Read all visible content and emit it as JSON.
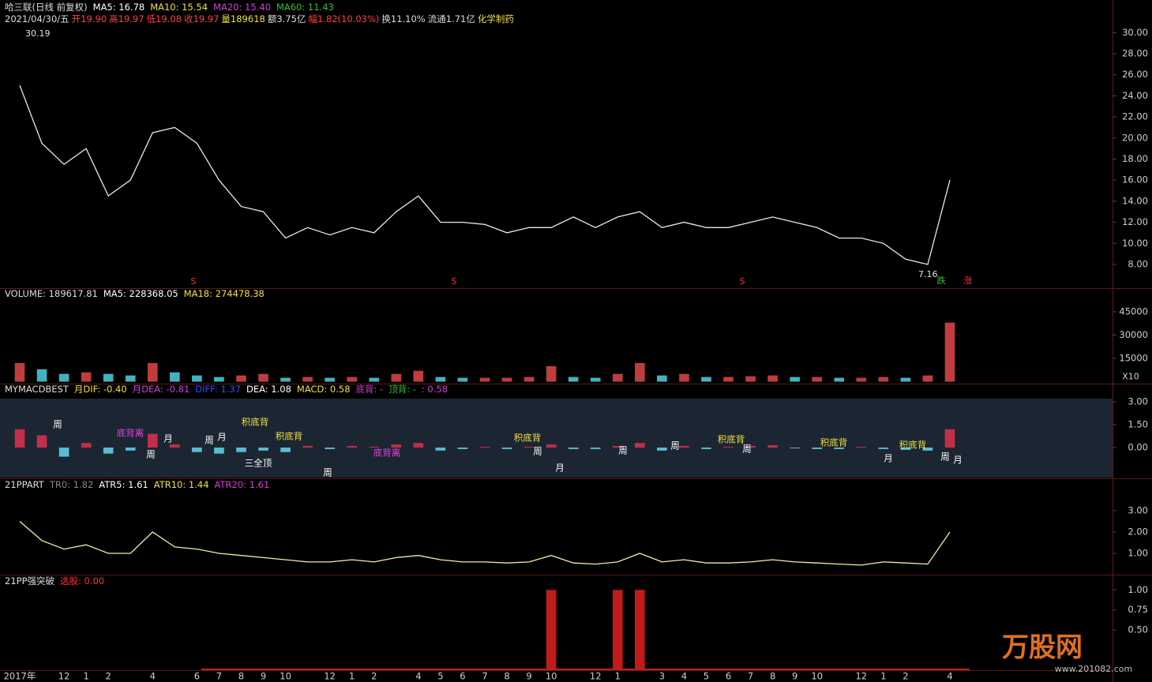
{
  "chart_data": [
    {
      "type": "line",
      "title": "哈三联(日线 前复权)",
      "indicators": [
        {
          "text": "MA5: 16.78",
          "color": "#ffffff"
        },
        {
          "text": "MA10: 15.54",
          "color": "#f0e040"
        },
        {
          "text": "MA20: 15.40",
          "color": "#d040d0"
        },
        {
          "text": "MA60: 11.43",
          "color": "#30c030"
        }
      ],
      "info": [
        {
          "text": "2021/04/30/五",
          "color": "#dddddd"
        },
        {
          "text": "开19.90",
          "color": "#ff4040"
        },
        {
          "text": "高19.97",
          "color": "#ff4040"
        },
        {
          "text": "低19.08",
          "color": "#ff4040"
        },
        {
          "text": "收19.97",
          "color": "#ff4040"
        },
        {
          "text": "量189618",
          "color": "#f0e040"
        },
        {
          "text": "额3.75亿",
          "color": "#dddddd"
        },
        {
          "text": "幅1.82(10.03%)",
          "color": "#ff4040"
        },
        {
          "text": "换11.10%",
          "color": "#dddddd"
        },
        {
          "text": "流通1.71亿",
          "color": "#dddddd"
        },
        {
          "text": "化学制药",
          "color": "#f0e040"
        }
      ],
      "categories": [
        "2017年",
        null,
        "12",
        "1",
        "2",
        null,
        "4",
        null,
        "6",
        "7",
        "8",
        "9",
        "10",
        null,
        "12",
        "1",
        "2",
        null,
        "4",
        "5",
        "6",
        "7",
        "8",
        "9",
        "10",
        null,
        "12",
        "1",
        null,
        "3",
        "4",
        "5",
        "6",
        "7",
        "8",
        "9",
        "10",
        null,
        "12",
        "1",
        "2",
        null,
        "4"
      ],
      "values": [
        25,
        19.5,
        17.5,
        19,
        14.5,
        16,
        20.5,
        21,
        19.5,
        16,
        13.5,
        13,
        10.5,
        11.5,
        10.8,
        11.5,
        11,
        13,
        14.5,
        12,
        12,
        11.8,
        11,
        11.5,
        11.5,
        12.5,
        11.5,
        12.5,
        13,
        11.5,
        12,
        11.5,
        11.5,
        12,
        12.5,
        12,
        11.5,
        10.5,
        10.5,
        10,
        8.5,
        8,
        16
      ],
      "color": "#e8e8e8",
      "high": 30.19,
      "low": 7.16,
      "markers": [
        {
          "text": "S",
          "color": "#ff3030"
        },
        {
          "text": "S",
          "color": "#ff3030"
        },
        {
          "text": "S",
          "color": "#ff3030"
        },
        {
          "text": "跌",
          "color": "#30c030"
        },
        {
          "text": "涨",
          "color": "#ff3030"
        }
      ],
      "ylim": [
        5.75,
        30.4
      ],
      "yticks": [
        {
          "value": 8,
          "label": "8.00"
        },
        {
          "value": 10,
          "label": "10.00"
        },
        {
          "value": 12,
          "label": "12.00"
        },
        {
          "value": 14,
          "label": "14.00"
        },
        {
          "value": 16,
          "label": "16.00"
        },
        {
          "value": 18,
          "label": "18.00"
        },
        {
          "value": 20,
          "label": "20.00"
        },
        {
          "value": 22,
          "label": "22.00"
        },
        {
          "value": 24,
          "label": "24.00"
        },
        {
          "value": 26,
          "label": "26.00"
        },
        {
          "value": 28,
          "label": "28.00"
        },
        {
          "value": 30,
          "label": "30.00"
        }
      ]
    },
    {
      "type": "bar",
      "title": "VOLUME: 189617.81",
      "indicators": [
        {
          "text": "MA5: 228368.05",
          "color": "#ffffff"
        },
        {
          "text": "MA18: 274478.38",
          "color": "#f0e040"
        }
      ],
      "values": [
        12000,
        8000,
        5000,
        6000,
        5000,
        4000,
        12000,
        6000,
        4000,
        3000,
        4000,
        5000,
        2500,
        3000,
        2500,
        3000,
        2500,
        5000,
        7000,
        3000,
        2500,
        2500,
        2500,
        3000,
        10000,
        3000,
        2500,
        5000,
        12000,
        4000,
        5000,
        3000,
        3000,
        3500,
        4000,
        3000,
        3000,
        2500,
        2500,
        3000,
        2500,
        4000,
        38000
      ],
      "colors": {
        "up": "#e04848",
        "down": "#50d0e0"
      },
      "unit": "X10",
      "ylim": [
        0,
        52600
      ],
      "yticks": [
        15000,
        30000,
        45000
      ]
    },
    {
      "type": "bar",
      "title": "MYMACDBEST",
      "indicators": [
        {
          "text": "月DIF: -0.40",
          "color": "#f0e040"
        },
        {
          "text": "月DEA: -0.81",
          "color": "#d040d0"
        },
        {
          "text": "DIFF: 1.37",
          "color": "#3050ff"
        },
        {
          "text": "DEA: 1.08",
          "color": "#ffffff"
        },
        {
          "text": "MACD: 0.58",
          "color": "#f0e040"
        },
        {
          "text": "底背: -",
          "color": "#d040d0"
        },
        {
          "text": "顶背: -",
          "color": "#30c030"
        },
        {
          "text": ": 0.58",
          "color": "#d040d0"
        }
      ],
      "values": [
        1.2,
        0.8,
        -0.6,
        0.3,
        -0.4,
        -0.2,
        0.9,
        0.2,
        -0.3,
        -0.4,
        -0.3,
        -0.2,
        -0.3,
        0.1,
        -0.1,
        0.1,
        0.05,
        0.2,
        0.3,
        -0.2,
        -0.1,
        0.05,
        -0.1,
        0.05,
        0.2,
        -0.1,
        -0.1,
        0.1,
        0.3,
        -0.2,
        0.1,
        -0.1,
        0.05,
        0.1,
        0.15,
        -0.05,
        -0.1,
        -0.1,
        0.05,
        -0.1,
        -0.15,
        -0.2,
        1.2
      ],
      "colors": {
        "up": "#e03050",
        "down": "#60d8f0"
      },
      "annotations": [
        {
          "text": "周",
          "color": "#ffffff"
        },
        {
          "text": "底背离",
          "color": "#e040e0"
        },
        {
          "text": "周",
          "color": "#ffffff"
        },
        {
          "text": "月",
          "color": "#ffffff"
        },
        {
          "text": "周",
          "color": "#ffffff"
        },
        {
          "text": "月",
          "color": "#ffffff"
        },
        {
          "text": "积底背",
          "color": "#f0e040"
        },
        {
          "text": "三全顶",
          "color": "#ffffff"
        },
        {
          "text": "积底背",
          "color": "#f0e040"
        },
        {
          "text": "周",
          "color": "#ffffff"
        },
        {
          "text": "底背离",
          "color": "#e040e0"
        },
        {
          "text": "积底背",
          "color": "#f0e040"
        },
        {
          "text": "周",
          "color": "#ffffff"
        },
        {
          "text": "月",
          "color": "#ffffff"
        },
        {
          "text": "周",
          "color": "#ffffff"
        },
        {
          "text": "周",
          "color": "#ffffff"
        },
        {
          "text": "积底背",
          "color": "#f0e040"
        },
        {
          "text": "周",
          "color": "#ffffff"
        },
        {
          "text": "积底背",
          "color": "#f0e040"
        },
        {
          "text": "积底背",
          "color": "#f0e040"
        },
        {
          "text": "月",
          "color": "#ffffff"
        },
        {
          "text": "周",
          "color": "#ffffff"
        },
        {
          "text": "月",
          "color": "#ffffff"
        }
      ],
      "ylim": [
        -1.97,
        3.21
      ],
      "yticks": [
        {
          "value": 0,
          "label": "0.00"
        },
        {
          "value": 1.5,
          "label": "1.50"
        },
        {
          "value": 3,
          "label": "3.00"
        }
      ]
    },
    {
      "type": "line",
      "title": "21PPART",
      "indicators": [
        {
          "text": "TR0: 1.82",
          "color": "#888888"
        },
        {
          "text": "ATR5: 1.61",
          "color": "#ffffff"
        },
        {
          "text": "ATR10: 1.44",
          "color": "#f0e040"
        },
        {
          "text": "ATR20: 1.61",
          "color": "#d040d0"
        }
      ],
      "values": [
        2.5,
        1.6,
        1.2,
        1.4,
        1.0,
        1.0,
        2.0,
        1.3,
        1.2,
        1.0,
        0.9,
        0.8,
        0.7,
        0.6,
        0.6,
        0.7,
        0.6,
        0.8,
        0.9,
        0.7,
        0.6,
        0.6,
        0.55,
        0.6,
        0.9,
        0.55,
        0.5,
        0.6,
        1.0,
        0.6,
        0.7,
        0.55,
        0.55,
        0.6,
        0.7,
        0.6,
        0.55,
        0.5,
        0.45,
        0.6,
        0.55,
        0.5,
        2.0
      ],
      "color": "#f0f0a0",
      "ylim": [
        0.04,
        4.44
      ],
      "yticks": [
        {
          "value": 1,
          "label": "1.00"
        },
        {
          "value": 2,
          "label": "2.00"
        },
        {
          "value": 3,
          "label": "3.00"
        }
      ]
    },
    {
      "type": "bar",
      "title": "21PP强突破",
      "indicators": [
        {
          "text": "选股: 0.00",
          "color": "#ff3030"
        }
      ],
      "values": [
        0,
        0,
        0,
        0,
        0,
        0,
        0,
        0,
        0,
        0,
        0,
        0,
        0,
        0,
        0,
        0,
        0,
        0,
        0,
        0,
        0,
        0,
        0,
        0,
        1,
        0,
        0,
        1,
        1,
        0,
        0,
        0,
        0,
        0,
        0,
        0,
        0,
        0,
        0,
        0,
        0,
        0,
        0
      ],
      "colors": {
        "up": "#e02020",
        "down": "#e02020"
      },
      "ylim": [
        0,
        1.15
      ],
      "yticks": [
        {
          "value": 0.5,
          "label": "0.50"
        },
        {
          "value": 0.75,
          "label": "0.75"
        },
        {
          "value": 1,
          "label": "1.00"
        }
      ]
    }
  ],
  "watermark": {
    "logo": "万股网",
    "url": "www.201082.com"
  }
}
